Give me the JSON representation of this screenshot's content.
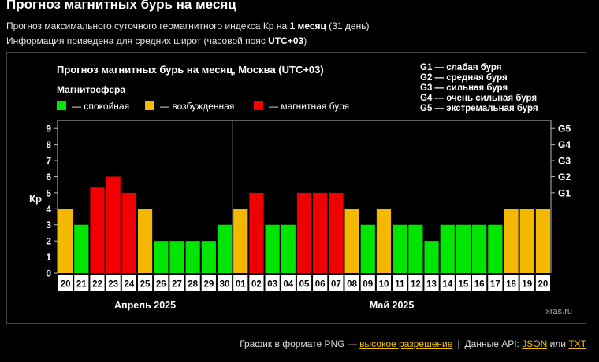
{
  "header": {
    "title": "Прогноз магнитных бурь на месяц",
    "line1_pre": "Прогноз максимального суточного геомагнитного индекса Кр на ",
    "line1_bold": "1 месяц",
    "line1_post": " (31 день)",
    "line2_pre": "Информация приведена для средних широт (часовой пояс ",
    "line2_bold": "UTC+03",
    "line2_post": ")"
  },
  "chart_data": {
    "type": "bar",
    "title": "Прогноз магнитных бурь на месяц, Москва (UTC+03)",
    "ylabel": "Кр",
    "ylim": [
      0,
      9.5
    ],
    "yticks": [
      0,
      1,
      2,
      3,
      4,
      5,
      6,
      7,
      8,
      9
    ],
    "storm_levels": [
      {
        "label": "G1",
        "kp": 5
      },
      {
        "label": "G2",
        "kp": 6
      },
      {
        "label": "G3",
        "kp": 7
      },
      {
        "label": "G4",
        "kp": 8
      },
      {
        "label": "G5",
        "kp": 9
      }
    ],
    "storm_legend": [
      "G1 — слабая буря",
      "G2 — средняя буря",
      "G3 — сильная буря",
      "G4 — очень сильная буря",
      "G5 — экстремальная буря"
    ],
    "magnetosphere_label": "Магнитосфера",
    "legend": [
      {
        "label": "— спокойная",
        "color": "#00e600"
      },
      {
        "label": "— возбужденная",
        "color": "#f5b800"
      },
      {
        "label": "— магнитная буря",
        "color": "#f00000"
      }
    ],
    "months": [
      {
        "label": "Апрель 2025",
        "start": 0,
        "end": 10
      },
      {
        "label": "Май 2025",
        "start": 11,
        "end": 30
      }
    ],
    "categories": [
      "20",
      "21",
      "22",
      "23",
      "24",
      "25",
      "26",
      "27",
      "28",
      "29",
      "30",
      "01",
      "02",
      "03",
      "04",
      "05",
      "06",
      "07",
      "08",
      "09",
      "10",
      "11",
      "12",
      "13",
      "14",
      "15",
      "16",
      "17",
      "18",
      "19",
      "20"
    ],
    "values": [
      4,
      3,
      5.33,
      6,
      5,
      4,
      2,
      2,
      2,
      2,
      3,
      4,
      5,
      3,
      3,
      5,
      5,
      5,
      4,
      3,
      4,
      3,
      3,
      2,
      3,
      3,
      3,
      3,
      4,
      4,
      4
    ],
    "colors": [
      "#f5b800",
      "#00e600",
      "#f00000",
      "#f00000",
      "#f00000",
      "#f5b800",
      "#00e600",
      "#00e600",
      "#00e600",
      "#00e600",
      "#00e600",
      "#f5b800",
      "#f00000",
      "#00e600",
      "#00e600",
      "#f00000",
      "#f00000",
      "#f00000",
      "#f5b800",
      "#00e600",
      "#f5b800",
      "#00e600",
      "#00e600",
      "#00e600",
      "#00e600",
      "#00e600",
      "#00e600",
      "#00e600",
      "#f5b800",
      "#f5b800",
      "#f5b800"
    ],
    "watermark": "xras.ru"
  },
  "footer": {
    "png_text": "График в формате PNG — ",
    "hires_link": "высокое разрешение",
    "separator": "|",
    "api_text": "Данные API: ",
    "json_link": "JSON",
    "or_text": " или ",
    "txt_link": "TXT"
  }
}
